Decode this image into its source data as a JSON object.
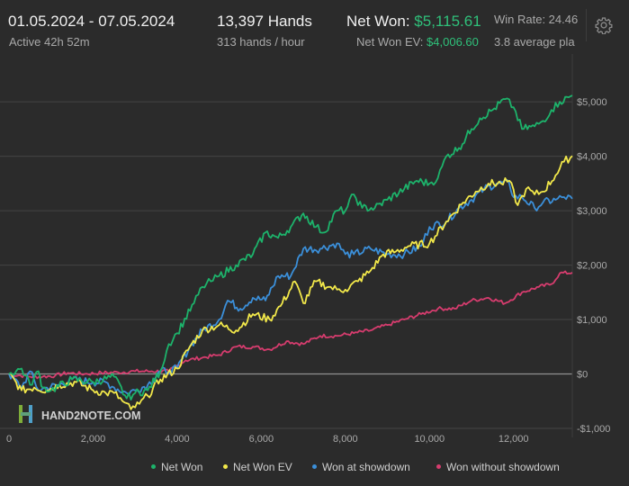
{
  "header": {
    "date_range": "01.05.2024 - 07.05.2024",
    "active": "Active 42h 52m",
    "hands": "13,397 Hands",
    "hands_per_hour": "313 hands / hour",
    "net_won_label": "Net Won:",
    "net_won_value": "$5,115.61",
    "net_won_ev_label": "Net Won  EV:",
    "net_won_ev_value": "$4,006.60",
    "win_rate": "Win Rate: 24.46",
    "avg_players": "3.8 average pla"
  },
  "watermark": "HAND2NOTE.COM",
  "colors": {
    "net_won": "#1db36b",
    "net_won_ev": "#f2e84a",
    "won_at_showdown": "#3b8fd9",
    "won_without_showdown": "#d63c6e",
    "accent_green": "#2fc07a",
    "background": "#2b2b2b"
  },
  "icons": {
    "settings": "gear-icon",
    "logo": "h2n-logo-icon"
  },
  "chart_data": {
    "type": "line",
    "xlim": [
      0,
      13397
    ],
    "ylim": [
      -1000,
      5300
    ],
    "x_ticks": [
      0,
      2000,
      4000,
      6000,
      8000,
      10000,
      12000
    ],
    "x_tick_labels": [
      "0",
      "2,000",
      "4,000",
      "6,000",
      "8,000",
      "10,000",
      "12,000"
    ],
    "y_ticks": [
      -1000,
      0,
      1000,
      2000,
      3000,
      4000,
      5000
    ],
    "y_tick_labels": [
      "-$1,000",
      "$0",
      "$1,000",
      "$2,000",
      "$3,000",
      "$4,000",
      "$5,000"
    ],
    "grid": "horizontal",
    "legend_position": "bottom",
    "series": [
      {
        "name": "Net Won",
        "color": "#1db36b",
        "x": [
          0,
          300,
          500,
          700,
          800,
          1000,
          1500,
          2000,
          2500,
          2800,
          3000,
          3300,
          3600,
          3800,
          4000,
          4400,
          4600,
          4800,
          5000,
          5400,
          5800,
          6100,
          6400,
          6700,
          7000,
          7300,
          7500,
          7800,
          8000,
          8200,
          8400,
          8700,
          9000,
          9400,
          9700,
          10000,
          10200,
          10400,
          10700,
          11000,
          11200,
          11500,
          11800,
          12000,
          12200,
          12500,
          12700,
          12900,
          13100,
          13397
        ],
        "y": [
          0,
          100,
          -200,
          50,
          -250,
          -300,
          -100,
          -150,
          -50,
          -450,
          -350,
          -300,
          50,
          550,
          750,
          1300,
          1600,
          1700,
          1800,
          2000,
          2200,
          2600,
          2500,
          2700,
          2950,
          2700,
          2600,
          3000,
          3000,
          3300,
          3050,
          3050,
          3200,
          3400,
          3550,
          3500,
          3600,
          4000,
          4150,
          4500,
          4700,
          4850,
          5050,
          4900,
          4500,
          4550,
          4650,
          4850,
          5000,
          5116
        ]
      },
      {
        "name": "Net Won  EV",
        "color": "#f2e84a",
        "x": [
          0,
          300,
          600,
          900,
          1200,
          1600,
          2000,
          2300,
          2500,
          2700,
          2900,
          3100,
          3300,
          3600,
          4000,
          4300,
          4600,
          5000,
          5400,
          5800,
          6200,
          6500,
          6800,
          7000,
          7300,
          7600,
          7800,
          8000,
          8300,
          8600,
          8900,
          9200,
          9500,
          10000,
          10400,
          10800,
          11100,
          11400,
          11700,
          11900,
          12100,
          12300,
          12500,
          12700,
          13000,
          13200,
          13397
        ],
        "y": [
          0,
          -300,
          -250,
          -300,
          -200,
          -150,
          -300,
          -350,
          -350,
          -500,
          -650,
          -550,
          -400,
          -100,
          100,
          500,
          800,
          900,
          800,
          1100,
          1000,
          1300,
          1700,
          1300,
          1700,
          1600,
          1550,
          1550,
          1700,
          1900,
          2200,
          2250,
          2350,
          2400,
          2800,
          3150,
          3350,
          3500,
          3500,
          3550,
          3100,
          3400,
          3300,
          3350,
          3650,
          3900,
          4007
        ]
      },
      {
        "name": "Won at showdown",
        "color": "#3b8fd9",
        "x": [
          0,
          300,
          500,
          700,
          900,
          1200,
          1500,
          2000,
          2300,
          2500,
          2800,
          3000,
          3300,
          3600,
          3800,
          4000,
          4300,
          4600,
          5000,
          5200,
          5500,
          5800,
          6100,
          6400,
          6700,
          7000,
          7400,
          7800,
          8000,
          8200,
          8600,
          9000,
          9400,
          9800,
          10000,
          10400,
          10700,
          11000,
          11300,
          11600,
          11900,
          12000,
          12200,
          12500,
          12700,
          13000,
          13200,
          13397
        ],
        "y": [
          0,
          -250,
          50,
          -300,
          -250,
          -200,
          -100,
          -150,
          -150,
          -250,
          -350,
          -300,
          -200,
          50,
          50,
          100,
          500,
          800,
          1000,
          1350,
          1200,
          1400,
          1350,
          1800,
          1800,
          2300,
          2300,
          2400,
          2200,
          2200,
          2300,
          2200,
          2200,
          2350,
          2700,
          2800,
          3050,
          3200,
          3400,
          3500,
          3500,
          3250,
          3250,
          3050,
          3150,
          3200,
          3250,
          3220
        ]
      },
      {
        "name": "Won without showdown",
        "color": "#d63c6e",
        "x": [
          0,
          500,
          800,
          1100,
          1400,
          1800,
          2200,
          2600,
          3000,
          3400,
          3800,
          4200,
          4600,
          5000,
          5400,
          5800,
          6200,
          6600,
          7000,
          7400,
          7800,
          8200,
          8600,
          9000,
          9400,
          9800,
          10200,
          10600,
          11000,
          11400,
          11800,
          12200,
          12600,
          12900,
          13100,
          13397
        ],
        "y": [
          0,
          -50,
          -50,
          -30,
          20,
          0,
          20,
          30,
          50,
          50,
          50,
          250,
          300,
          350,
          500,
          500,
          450,
          600,
          550,
          700,
          700,
          750,
          800,
          900,
          1000,
          1100,
          1200,
          1200,
          1350,
          1400,
          1300,
          1500,
          1600,
          1650,
          1850,
          1860
        ]
      }
    ]
  },
  "legend": [
    {
      "label": "Net Won",
      "color": "#1db36b"
    },
    {
      "label": "Net Won  EV",
      "color": "#f2e84a"
    },
    {
      "label": "Won at showdown",
      "color": "#3b8fd9"
    },
    {
      "label": "Won without showdown",
      "color": "#d63c6e"
    }
  ]
}
